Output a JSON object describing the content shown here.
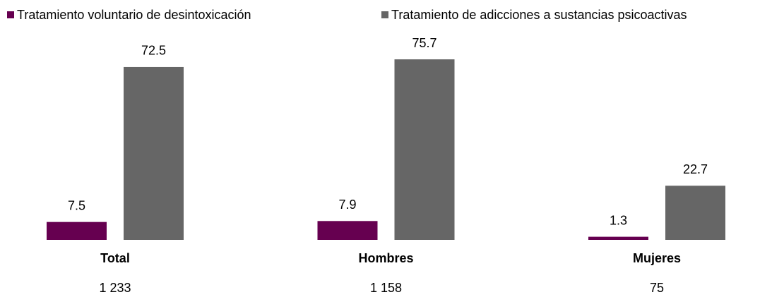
{
  "chart_data": {
    "type": "bar",
    "categories": [
      "Total",
      "Hombres",
      "Mujeres"
    ],
    "category_notes": [
      "1 233",
      "1 158",
      "75"
    ],
    "series": [
      {
        "name": "Tratamiento voluntario de desintoxicación",
        "color": "#660050",
        "values": [
          7.5,
          7.9,
          1.3
        ]
      },
      {
        "name": "Tratamiento de adicciones a sustancias psicoactivas",
        "color": "#666666",
        "values": [
          72.5,
          75.7,
          22.7
        ]
      }
    ],
    "legend": "top"
  }
}
